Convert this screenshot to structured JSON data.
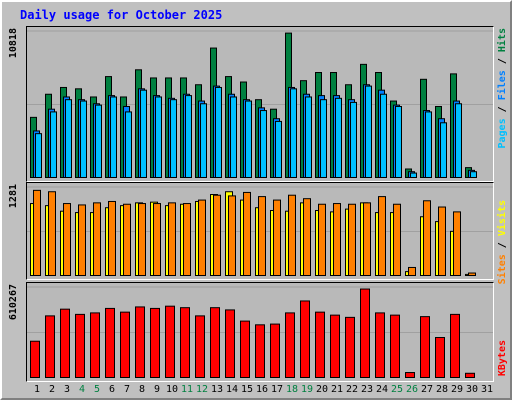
{
  "title": "Daily usage for October 2025",
  "colors": {
    "hits": "#008040",
    "files": "#0080ff",
    "pages": "#00c0ff",
    "visits": "#ffff00",
    "sites": "#ff8000",
    "kbytes": "#ff0000",
    "weekend": "#008040",
    "weekday": "#000000"
  },
  "legend": {
    "top": {
      "pages": "Pages",
      "files": "Files",
      "hits": "Hits",
      "sep": "/"
    },
    "middle": {
      "sites": "Sites",
      "visits": "Visits",
      "sep": "/"
    },
    "bottom": {
      "kbytes": "KBytes"
    }
  },
  "chart_data": [
    {
      "type": "bar",
      "panel": "hits-files-pages",
      "ylabel": "10818",
      "ylim": [
        0,
        10818
      ],
      "categories": [
        "1",
        "2",
        "3",
        "4",
        "5",
        "6",
        "7",
        "8",
        "9",
        "10",
        "11",
        "12",
        "13",
        "14",
        "15",
        "16",
        "17",
        "18",
        "19",
        "20",
        "21",
        "22",
        "23",
        "24",
        "25",
        "26",
        "27",
        "28",
        "29",
        "30",
        "31"
      ],
      "series": [
        {
          "name": "Hits",
          "values": [
            4500,
            6200,
            6700,
            6600,
            6000,
            7500,
            6000,
            8000,
            7400,
            7400,
            7400,
            6900,
            9600,
            7500,
            7100,
            5800,
            5100,
            10700,
            7200,
            7800,
            7800,
            6900,
            8400,
            7800,
            5700,
            700,
            7300,
            5300,
            7700,
            800,
            0
          ]
        },
        {
          "name": "Files",
          "values": [
            3500,
            5100,
            6000,
            5800,
            5500,
            6100,
            5300,
            6600,
            6100,
            5900,
            6200,
            5700,
            6800,
            6200,
            5800,
            5200,
            4400,
            6700,
            6200,
            6100,
            6100,
            5800,
            6900,
            6500,
            5400,
            500,
            5000,
            4400,
            5700,
            600,
            0
          ]
        },
        {
          "name": "Pages",
          "values": [
            3300,
            4900,
            5800,
            5700,
            5400,
            6000,
            4900,
            6500,
            6000,
            5800,
            6100,
            5500,
            6700,
            6000,
            5700,
            5000,
            4200,
            6600,
            6000,
            5800,
            5900,
            5600,
            6800,
            6200,
            5300,
            400,
            4900,
            4100,
            5500,
            500,
            0
          ]
        }
      ]
    },
    {
      "type": "bar",
      "panel": "visits-sites",
      "ylabel": "1281",
      "ylim": [
        0,
        1281
      ],
      "categories": [
        "1",
        "2",
        "3",
        "4",
        "5",
        "6",
        "7",
        "8",
        "9",
        "10",
        "11",
        "12",
        "13",
        "14",
        "15",
        "16",
        "17",
        "18",
        "19",
        "20",
        "21",
        "22",
        "23",
        "24",
        "25",
        "26",
        "27",
        "28",
        "29",
        "30",
        "31"
      ],
      "series": [
        {
          "name": "Visits",
          "values": [
            1050,
            1020,
            940,
            920,
            920,
            990,
            1020,
            1060,
            1070,
            1020,
            1040,
            1080,
            1180,
            1220,
            1100,
            990,
            950,
            940,
            1060,
            950,
            930,
            970,
            1060,
            920,
            920,
            70,
            860,
            790,
            650,
            30,
            0
          ]
        },
        {
          "name": "Sites",
          "values": [
            1240,
            1220,
            1050,
            1030,
            1060,
            1080,
            1040,
            1050,
            1050,
            1060,
            1050,
            1100,
            1170,
            1160,
            1210,
            1150,
            1100,
            1170,
            1120,
            1040,
            1050,
            1040,
            1060,
            1150,
            1040,
            130,
            1090,
            1000,
            930,
            50,
            0
          ]
        }
      ]
    },
    {
      "type": "bar",
      "panel": "kbytes",
      "ylabel": "610267",
      "ylim": [
        0,
        610267
      ],
      "categories": [
        "1",
        "2",
        "3",
        "4",
        "5",
        "6",
        "7",
        "8",
        "9",
        "10",
        "11",
        "12",
        "13",
        "14",
        "15",
        "16",
        "17",
        "18",
        "19",
        "20",
        "21",
        "22",
        "23",
        "24",
        "25",
        "26",
        "27",
        "28",
        "29",
        "30",
        "31"
      ],
      "series": [
        {
          "name": "KBytes",
          "values": [
            250000,
            420000,
            465000,
            430000,
            440000,
            470000,
            445000,
            480000,
            470000,
            485000,
            475000,
            420000,
            475000,
            460000,
            385000,
            360000,
            365000,
            440000,
            520000,
            445000,
            425000,
            410000,
            600000,
            440000,
            425000,
            40000,
            415000,
            275000,
            430000,
            35000,
            0
          ]
        }
      ]
    }
  ],
  "x_ticks": [
    {
      "label": "1",
      "weekend": false
    },
    {
      "label": "2",
      "weekend": false
    },
    {
      "label": "3",
      "weekend": false
    },
    {
      "label": "4",
      "weekend": true
    },
    {
      "label": "5",
      "weekend": true
    },
    {
      "label": "6",
      "weekend": false
    },
    {
      "label": "7",
      "weekend": false
    },
    {
      "label": "8",
      "weekend": false
    },
    {
      "label": "9",
      "weekend": false
    },
    {
      "label": "10",
      "weekend": false
    },
    {
      "label": "11",
      "weekend": true
    },
    {
      "label": "12",
      "weekend": true
    },
    {
      "label": "13",
      "weekend": false
    },
    {
      "label": "14",
      "weekend": false
    },
    {
      "label": "15",
      "weekend": false
    },
    {
      "label": "16",
      "weekend": false
    },
    {
      "label": "17",
      "weekend": false
    },
    {
      "label": "18",
      "weekend": true
    },
    {
      "label": "19",
      "weekend": true
    },
    {
      "label": "20",
      "weekend": false
    },
    {
      "label": "21",
      "weekend": false
    },
    {
      "label": "22",
      "weekend": false
    },
    {
      "label": "23",
      "weekend": false
    },
    {
      "label": "24",
      "weekend": false
    },
    {
      "label": "25",
      "weekend": true
    },
    {
      "label": "26",
      "weekend": true
    },
    {
      "label": "27",
      "weekend": false
    },
    {
      "label": "28",
      "weekend": false
    },
    {
      "label": "29",
      "weekend": false
    },
    {
      "label": "30",
      "weekend": false
    },
    {
      "label": "31",
      "weekend": false
    }
  ]
}
